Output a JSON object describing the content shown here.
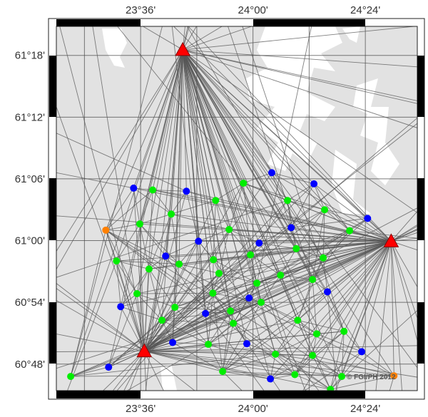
{
  "map": {
    "extent": {
      "lon": [
        23.3,
        24.585
      ],
      "lat": [
        60.757,
        61.347
      ]
    },
    "colors": {
      "land": "#e2e2e2",
      "water": "#ffffff",
      "grid": "#444444",
      "ray": "#555555",
      "reference_station": "#ff0000",
      "blue_station": "#0000ff",
      "green_station": "#00ee00",
      "orange_station": "#ff8000"
    },
    "x_ticks": [
      {
        "lon": 23.6,
        "label": "23°36'"
      },
      {
        "lon": 24.0,
        "label": "24°00'"
      },
      {
        "lon": 24.4,
        "label": "24°24'"
      }
    ],
    "y_ticks": [
      {
        "lat": 61.3,
        "label": "61°18'"
      },
      {
        "lat": 61.2,
        "label": "61°12'"
      },
      {
        "lat": 61.1,
        "label": "61°06'"
      },
      {
        "lat": 61.0,
        "label": "61°00'"
      },
      {
        "lat": 60.9,
        "label": "60°54'"
      },
      {
        "lat": 60.8,
        "label": "60°48'"
      }
    ],
    "copyright": "© FGI/PH 2012",
    "reference_stations": [
      [
        23.75,
        61.309
      ],
      [
        24.492,
        60.999
      ],
      [
        23.613,
        60.821
      ]
    ],
    "orange_stations": [
      [
        23.476,
        61.017
      ],
      [
        24.502,
        60.781
      ]
    ],
    "blue_stations": [
      [
        23.575,
        61.085
      ],
      [
        23.763,
        61.08
      ],
      [
        24.067,
        61.11
      ],
      [
        24.217,
        61.092
      ],
      [
        24.408,
        61.036
      ],
      [
        24.136,
        61.021
      ],
      [
        23.806,
        60.999
      ],
      [
        24.022,
        60.996
      ],
      [
        23.689,
        60.975
      ],
      [
        23.986,
        60.907
      ],
      [
        24.265,
        60.917
      ],
      [
        23.529,
        60.893
      ],
      [
        23.831,
        60.882
      ],
      [
        23.714,
        60.835
      ],
      [
        23.978,
        60.833
      ],
      [
        23.486,
        60.795
      ],
      [
        24.387,
        60.82
      ],
      [
        24.062,
        60.776
      ]
    ],
    "green_stations": [
      [
        23.643,
        61.082
      ],
      [
        23.867,
        61.065
      ],
      [
        23.709,
        61.043
      ],
      [
        23.597,
        61.027
      ],
      [
        23.915,
        61.018
      ],
      [
        23.514,
        60.967
      ],
      [
        23.63,
        60.954
      ],
      [
        23.737,
        60.962
      ],
      [
        23.859,
        60.969
      ],
      [
        23.879,
        60.947
      ],
      [
        23.966,
        61.093
      ],
      [
        24.123,
        61.065
      ],
      [
        24.255,
        61.05
      ],
      [
        24.344,
        61.016
      ],
      [
        24.154,
        60.987
      ],
      [
        23.991,
        60.977
      ],
      [
        24.25,
        60.972
      ],
      [
        24.098,
        60.944
      ],
      [
        24.212,
        60.937
      ],
      [
        24.014,
        60.931
      ],
      [
        23.587,
        60.914
      ],
      [
        23.722,
        60.892
      ],
      [
        23.676,
        60.871
      ],
      [
        23.857,
        60.915
      ],
      [
        23.92,
        60.886
      ],
      [
        23.93,
        60.866
      ],
      [
        23.841,
        60.832
      ],
      [
        23.892,
        60.788
      ],
      [
        23.351,
        60.78
      ],
      [
        24.029,
        60.9
      ],
      [
        24.159,
        60.871
      ],
      [
        24.227,
        60.849
      ],
      [
        24.324,
        60.853
      ],
      [
        24.08,
        60.816
      ],
      [
        24.212,
        60.814
      ],
      [
        24.149,
        60.783
      ],
      [
        24.316,
        60.78
      ],
      [
        24.276,
        60.759
      ]
    ]
  }
}
